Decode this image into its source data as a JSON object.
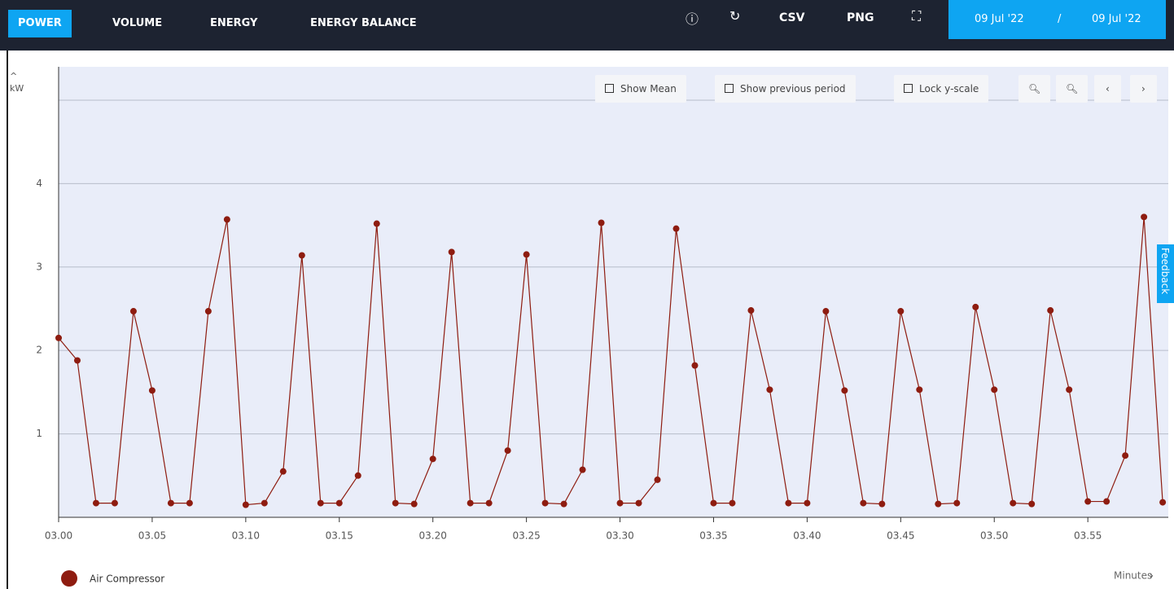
{
  "nav": {
    "tabs": [
      "POWER",
      "VOLUME",
      "ENERGY",
      "ENERGY BALANCE"
    ],
    "actions": [
      "CSV",
      "PNG"
    ]
  },
  "date_range": {
    "start": "09 Jul '22",
    "separator": "/",
    "end": "09 Jul '22"
  },
  "toolbar": [
    "Show Mean",
    "Show previous period",
    "Lock y-scale"
  ],
  "feedback": "Feedback",
  "x_unit": "Minutes",
  "chart_data": {
    "type": "line",
    "y_label": "kW",
    "categories": [
      "03.00",
      null,
      null,
      null,
      null,
      "03.05",
      null,
      null,
      null,
      null,
      "03.10",
      null,
      null,
      null,
      null,
      "03.15",
      null,
      null,
      null,
      null,
      "03.20",
      null,
      null,
      null,
      null,
      "03.25",
      null,
      null,
      null,
      null,
      "03.30",
      null,
      null,
      null,
      null,
      "03.35",
      null,
      null,
      null,
      null,
      "03.40",
      null,
      null,
      null,
      null,
      "03.45",
      null,
      null,
      null,
      null,
      "03.50",
      null,
      null,
      null,
      null,
      "03.55",
      null,
      null,
      null,
      null
    ],
    "series": [
      {
        "name": "Air Compressor",
        "color": "#8e1c10",
        "values": [
          2.15,
          1.88,
          0.17,
          0.17,
          2.47,
          1.52,
          0.17,
          0.17,
          2.47,
          3.57,
          0.15,
          0.17,
          0.55,
          3.14,
          0.17,
          0.17,
          0.5,
          3.52,
          0.17,
          0.16,
          0.7,
          3.18,
          0.17,
          0.17,
          0.8,
          3.15,
          0.17,
          0.16,
          0.57,
          3.53,
          0.17,
          0.17,
          0.45,
          3.46,
          1.82,
          0.17,
          0.17,
          2.48,
          1.53,
          0.17,
          0.17,
          2.47,
          1.52,
          0.17,
          0.16,
          2.47,
          1.53,
          0.16,
          0.17,
          2.52,
          1.53,
          0.17,
          0.16,
          2.48,
          1.53,
          0.19,
          0.19,
          0.74,
          3.6,
          0.18
        ]
      }
    ],
    "ylim": [
      0,
      5.4
    ],
    "yticks": [
      1,
      2,
      3,
      4
    ],
    "grid": true
  }
}
